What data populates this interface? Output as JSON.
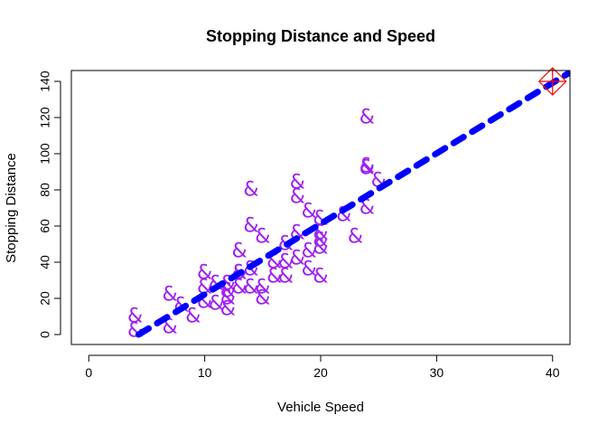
{
  "chart_data": {
    "type": "scatter",
    "title": "Stopping Distance and Speed",
    "xlabel": "Vehicle Speed",
    "ylabel": "Stopping Distance",
    "xlim": [
      -1.5,
      41.5
    ],
    "ylim": [
      -5.5,
      146
    ],
    "xticks": [
      0,
      10,
      20,
      30,
      40
    ],
    "yticks": [
      0,
      20,
      40,
      60,
      80,
      100,
      120,
      140
    ],
    "grid": false,
    "legend": "none",
    "point_symbol": "&",
    "point_color": "#a020f0",
    "points": {
      "x": [
        4,
        4,
        7,
        7,
        8,
        9,
        10,
        10,
        10,
        11,
        11,
        12,
        12,
        12,
        12,
        13,
        13,
        13,
        13,
        14,
        14,
        14,
        14,
        15,
        15,
        15,
        16,
        16,
        17,
        17,
        17,
        18,
        18,
        18,
        18,
        19,
        19,
        19,
        20,
        20,
        20,
        20,
        20,
        22,
        23,
        24,
        24,
        24,
        24,
        25
      ],
      "y": [
        2,
        10,
        4,
        22,
        16,
        10,
        18,
        26,
        34,
        17,
        28,
        14,
        20,
        24,
        28,
        26,
        34,
        34,
        46,
        26,
        36,
        60,
        80,
        20,
        26,
        54,
        32,
        40,
        32,
        40,
        50,
        42,
        56,
        76,
        84,
        36,
        46,
        68,
        32,
        48,
        52,
        56,
        64,
        66,
        54,
        70,
        92,
        93,
        120,
        85
      ]
    },
    "fit_line": {
      "x": [
        4.3,
        41.5
      ],
      "y": [
        0,
        145
      ],
      "color": "#0000ff",
      "style": "dashed"
    },
    "marker": {
      "x": 40,
      "y": 140,
      "color": "#ff0000",
      "symbol": "diamond-plus"
    }
  }
}
